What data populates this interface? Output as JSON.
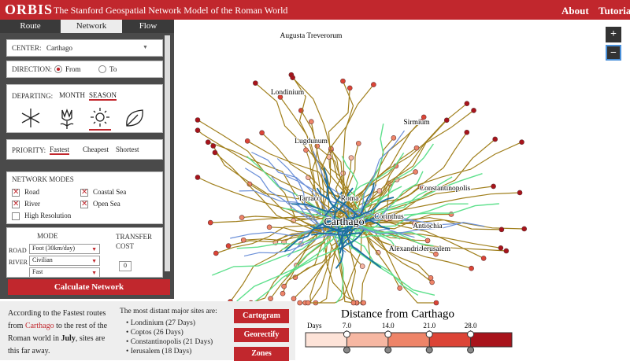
{
  "header": {
    "logo": "ORBIS",
    "title": "The Stanford Geospatial Network Model of the Roman World",
    "nav": [
      "About",
      "Tutorial"
    ]
  },
  "tabs": [
    "Route",
    "Network",
    "Flow"
  ],
  "center": {
    "label": "CENTER:",
    "value": "Carthago"
  },
  "direction": {
    "label": "DIRECTION:",
    "options": [
      {
        "text": "From",
        "selected": true
      },
      {
        "text": "To",
        "selected": false
      }
    ]
  },
  "departing": {
    "label": "DEPARTING:",
    "options": [
      {
        "text": "MONTH",
        "selected": false
      },
      {
        "text": "SEASON",
        "selected": true
      }
    ]
  },
  "priority": {
    "label": "PRIORITY:",
    "options": [
      {
        "text": "Fastest",
        "selected": true
      },
      {
        "text": "Cheapest",
        "selected": false
      },
      {
        "text": "Shortest",
        "selected": false
      }
    ]
  },
  "network_modes": {
    "label": "NETWORK MODES",
    "options": [
      {
        "text": "Road",
        "checked": true
      },
      {
        "text": "Coastal Sea",
        "checked": true
      },
      {
        "text": "River",
        "checked": true
      },
      {
        "text": "Open Sea",
        "checked": true
      },
      {
        "text": "High Resolution",
        "checked": false
      }
    ]
  },
  "mode_table": {
    "mode_header": "MODE",
    "cost_header": "TRANSFER COST",
    "rows": [
      {
        "label": "ROAD",
        "value": "Foot (30km/day)"
      },
      {
        "label": "RIVER",
        "value": "Civilian"
      },
      {
        "label": "",
        "value": "Fast"
      }
    ],
    "cost": "0"
  },
  "calculate_button": "Calculate Network",
  "summary": {
    "parts": [
      "According to the Fastest routes from ",
      "Carthago",
      " to the rest of the Roman world in ",
      "July",
      ", sites are this far away."
    ]
  },
  "distant": {
    "heading": "The most distant major sites are:",
    "items": [
      "Londinium (27 Days)",
      "Coptos (26 Days)",
      "Constantinopolis (21 Days)",
      "Ierusalem (18 Days)"
    ]
  },
  "buttons": [
    "Cartogram",
    "Georectify",
    "Zones"
  ],
  "zoom": [
    "+",
    "−"
  ],
  "map": {
    "cities": [
      "Augusta Treverorum",
      "Londinium",
      "Sirmium",
      "Lugdunum",
      "Tarraco",
      "Roma",
      "Constantinopolis",
      "Carthago",
      "Corinthus",
      "Antiochia",
      "Alexandria",
      "Jerusalem"
    ]
  },
  "legend": {
    "title": "Distance from Carthago",
    "unit": "Days",
    "range": [
      0,
      35
    ],
    "ticks": [
      {
        "value": 7,
        "label": "7.0"
      },
      {
        "value": 14,
        "label": "14.0"
      },
      {
        "value": 21,
        "label": "21.0"
      },
      {
        "value": 28,
        "label": "28.0"
      }
    ],
    "colors": [
      "#fde3d8",
      "#f6b7a2",
      "#ee8468",
      "#dc4436",
      "#a8131b"
    ]
  }
}
